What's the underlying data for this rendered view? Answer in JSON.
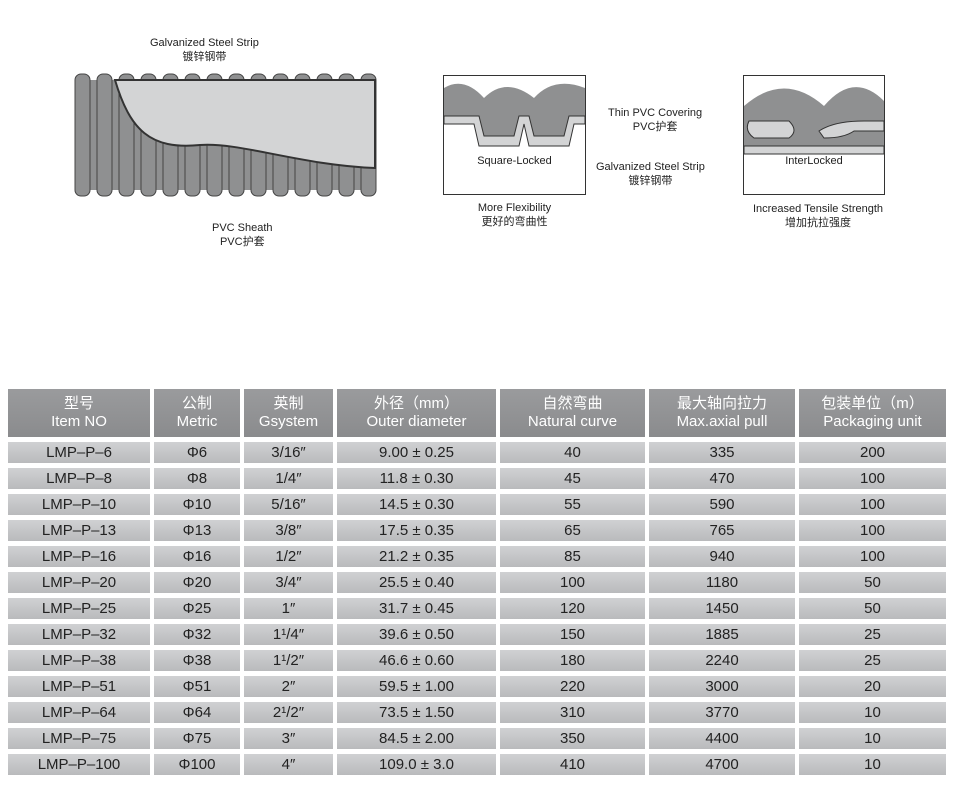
{
  "diagram": {
    "pipe_labels": {
      "steel_strip_en": "Galvanized Steel Strip",
      "steel_strip_cn": "镀锌钢带",
      "sheath_en": "PVC Sheath",
      "sheath_cn": "PVC护套"
    },
    "square_locked": {
      "title": "Square-Locked",
      "caption_en": "More Flexibility",
      "caption_cn": "更好的弯曲性"
    },
    "interlocked": {
      "title": "InterLocked",
      "caption_en": "Increased Tensile Strength",
      "caption_cn": "增加抗拉强度"
    },
    "covering_en": "Thin PVC Covering",
    "covering_cn": "PVC护套",
    "strip_en": "Galvanized Steel Strip",
    "strip_cn": "镀锌钢带",
    "colors": {
      "pvc": "#8f9091",
      "steel": "#d3d4d5"
    }
  },
  "table": {
    "headers": [
      {
        "cn": "型号",
        "en": "Item NO"
      },
      {
        "cn": "公制",
        "en": "Metric"
      },
      {
        "cn": "英制",
        "en": "Gsystem"
      },
      {
        "cn": "外径（mm）",
        "en": "Outer diameter"
      },
      {
        "cn": "自然弯曲",
        "en": "Natural curve"
      },
      {
        "cn": "最大轴向拉力",
        "en": "Max.axial pull"
      },
      {
        "cn": "包装单位（m）",
        "en": "Packaging unit"
      }
    ],
    "rows": [
      [
        "LMP–P–6",
        "Φ6",
        "3/16″",
        "9.00 ± 0.25",
        "40",
        "335",
        "200"
      ],
      [
        "LMP–P–8",
        "Φ8",
        "1/4″",
        "11.8 ± 0.30",
        "45",
        "470",
        "100"
      ],
      [
        "LMP–P–10",
        "Φ10",
        "5/16″",
        "14.5 ± 0.30",
        "55",
        "590",
        "100"
      ],
      [
        "LMP–P–13",
        "Φ13",
        "3/8″",
        "17.5 ± 0.35",
        "65",
        "765",
        "100"
      ],
      [
        "LMP–P–16",
        "Φ16",
        "1/2″",
        "21.2 ± 0.35",
        "85",
        "940",
        "100"
      ],
      [
        "LMP–P–20",
        "Φ20",
        "3/4″",
        "25.5 ± 0.40",
        "100",
        "1180",
        "50"
      ],
      [
        "LMP–P–25",
        "Φ25",
        "1″",
        "31.7 ± 0.45",
        "120",
        "1450",
        "50"
      ],
      [
        "LMP–P–32",
        "Φ32",
        "1¹/4″",
        "39.6 ± 0.50",
        "150",
        "1885",
        "25"
      ],
      [
        "LMP–P–38",
        "Φ38",
        "1¹/2″",
        "46.6 ± 0.60",
        "180",
        "2240",
        "25"
      ],
      [
        "LMP–P–51",
        "Φ51",
        "2″",
        "59.5 ± 1.00",
        "220",
        "3000",
        "20"
      ],
      [
        "LMP–P–64",
        "Φ64",
        "2¹/2″",
        "73.5 ± 1.50",
        "310",
        "3770",
        "10"
      ],
      [
        "LMP–P–75",
        "Φ75",
        "3″",
        "84.5 ± 2.00",
        "350",
        "4400",
        "10"
      ],
      [
        "LMP–P–100",
        "Φ100",
        "4″",
        "109.0 ± 3.0",
        "410",
        "4700",
        "10"
      ]
    ]
  }
}
